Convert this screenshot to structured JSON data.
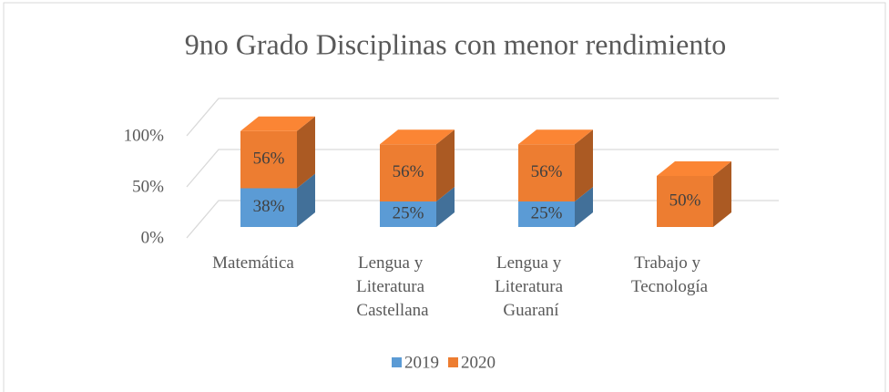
{
  "chart_data": {
    "type": "bar3d_stacked",
    "title": "9no Grado Disciplinas con menor rendimiento",
    "categories": [
      "Matemática",
      "Lengua y Literatura Castellana",
      "Lengua y Literatura Guaraní",
      "Trabajo y Tecnología"
    ],
    "series": [
      {
        "name": "2019",
        "color": "#5b9bd5",
        "values": [
          38,
          25,
          25,
          null
        ],
        "value_labels": [
          "38%",
          "25%",
          "25%",
          null
        ]
      },
      {
        "name": "2020",
        "color": "#ed7d31",
        "values": [
          56,
          56,
          56,
          50
        ],
        "value_labels": [
          "56%",
          "56%",
          "56%",
          "50%"
        ]
      }
    ],
    "ylim": [
      0,
      100
    ],
    "yticks": [
      {
        "value": 0,
        "label": "0%"
      },
      {
        "value": 50,
        "label": "50%"
      },
      {
        "value": 100,
        "label": "100%"
      }
    ],
    "grid": true,
    "legend": "bottom"
  }
}
